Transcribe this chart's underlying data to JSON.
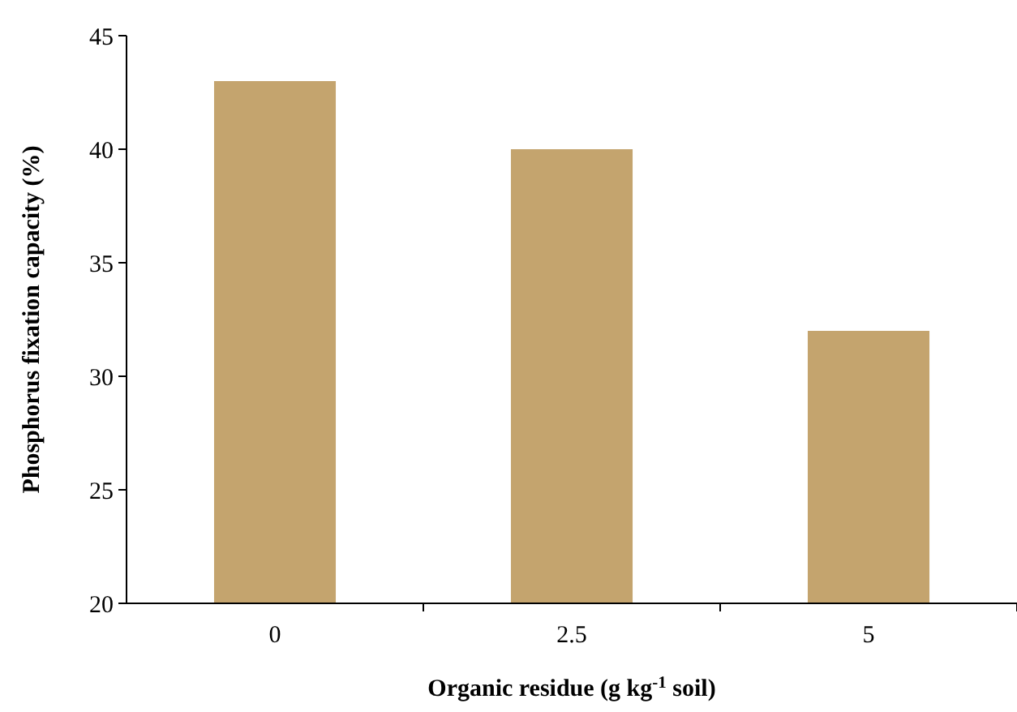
{
  "chart_data": {
    "type": "bar",
    "xlabel": "Organic residue (g kg$^{-1}$ soil)",
    "ylabel": "Phosphorus fixation capacity (%)",
    "categories": [
      "0",
      "2.5",
      "5"
    ],
    "values": [
      43,
      40,
      32
    ],
    "color": "#c4a46e",
    "ylim": [
      20,
      45
    ],
    "yticks": [
      20,
      25,
      30,
      35,
      40,
      45
    ],
    "grid": false
  }
}
